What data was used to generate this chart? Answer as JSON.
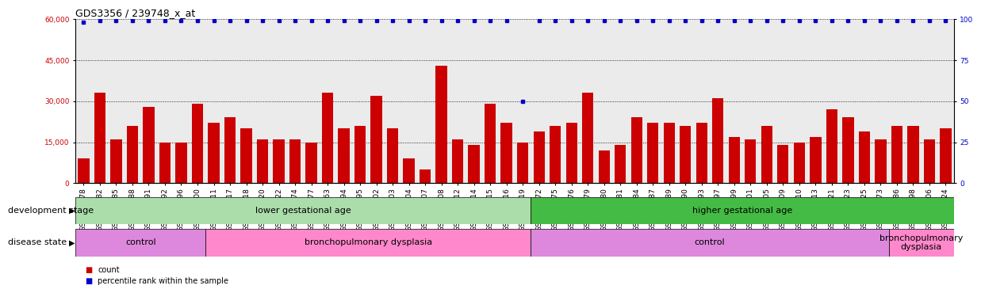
{
  "title": "GDS3356 / 239748_x_at",
  "samples": [
    "GSM213078",
    "GSM213082",
    "GSM213085",
    "GSM213088",
    "GSM213091",
    "GSM213092",
    "GSM213096",
    "GSM213100",
    "GSM213111",
    "GSM213117",
    "GSM213118",
    "GSM213120",
    "GSM213122",
    "GSM213074",
    "GSM213077",
    "GSM213063",
    "GSM213094",
    "GSM213095",
    "GSM213102",
    "GSM213103",
    "GSM213104",
    "GSM213107",
    "GSM213108",
    "GSM213112",
    "GSM213114",
    "GSM213115",
    "GSM213116",
    "GSM213119",
    "GSM213072",
    "GSM213075",
    "GSM213076",
    "GSM213079",
    "GSM213080",
    "GSM213081",
    "GSM213084",
    "GSM213087",
    "GSM213089",
    "GSM213090",
    "GSM213093",
    "GSM213097",
    "GSM213099",
    "GSM213101",
    "GSM213105",
    "GSM213109",
    "GSM213110",
    "GSM213113",
    "GSM213121",
    "GSM213123",
    "GSM213125",
    "GSM213073",
    "GSM213086",
    "GSM213098",
    "GSM213106",
    "GSM213124"
  ],
  "counts": [
    9000,
    33000,
    16000,
    21000,
    28000,
    15000,
    15000,
    29000,
    22000,
    24000,
    20000,
    16000,
    16000,
    16000,
    15000,
    33000,
    20000,
    21000,
    32000,
    20000,
    9000,
    5000,
    43000,
    16000,
    14000,
    29000,
    22000,
    15000,
    19000,
    21000,
    22000,
    33000,
    12000,
    14000,
    24000,
    22000,
    22000,
    21000,
    22000,
    31000,
    17000,
    16000,
    21000,
    14000,
    15000,
    17000,
    27000,
    24000,
    19000,
    16000,
    21000,
    21000,
    16000,
    20000
  ],
  "percentile_ranks": [
    98,
    99,
    99,
    99,
    99,
    99,
    99,
    99,
    99,
    99,
    99,
    99,
    99,
    99,
    99,
    99,
    99,
    99,
    99,
    99,
    99,
    99,
    99,
    99,
    99,
    99,
    99,
    50,
    99,
    99,
    99,
    99,
    99,
    99,
    99,
    99,
    99,
    99,
    99,
    99,
    99,
    99,
    99,
    99,
    99,
    99,
    99,
    99,
    99,
    99,
    99,
    99,
    99,
    99
  ],
  "bar_color": "#cc0000",
  "percentile_color": "#0000cc",
  "ylim_left": [
    0,
    60000
  ],
  "ylim_right": [
    0,
    100
  ],
  "yticks_left": [
    0,
    15000,
    30000,
    45000,
    60000
  ],
  "yticks_right": [
    0,
    25,
    50,
    75,
    100
  ],
  "plot_bg_color": "#ebebeb",
  "dev_groups": [
    {
      "label": "lower gestational age",
      "start": 0,
      "end": 28,
      "color": "#aaddaa"
    },
    {
      "label": "higher gestational age",
      "start": 28,
      "end": 54,
      "color": "#44bb44"
    }
  ],
  "dis_groups": [
    {
      "label": "control",
      "start": 0,
      "end": 8,
      "color": "#dd88dd"
    },
    {
      "label": "bronchopulmonary dysplasia",
      "start": 8,
      "end": 28,
      "color": "#ff88cc"
    },
    {
      "label": "control",
      "start": 28,
      "end": 50,
      "color": "#dd88dd"
    },
    {
      "label": "bronchopulmonary\ndysplasia",
      "start": 50,
      "end": 54,
      "color": "#ff88cc"
    }
  ],
  "dev_stage_label": "development stage",
  "disease_state_label": "disease state",
  "legend_count": "count",
  "legend_percentile": "percentile rank within the sample",
  "title_fontsize": 9,
  "tick_fontsize": 6.5,
  "label_fontsize": 8,
  "group_fontsize": 8
}
